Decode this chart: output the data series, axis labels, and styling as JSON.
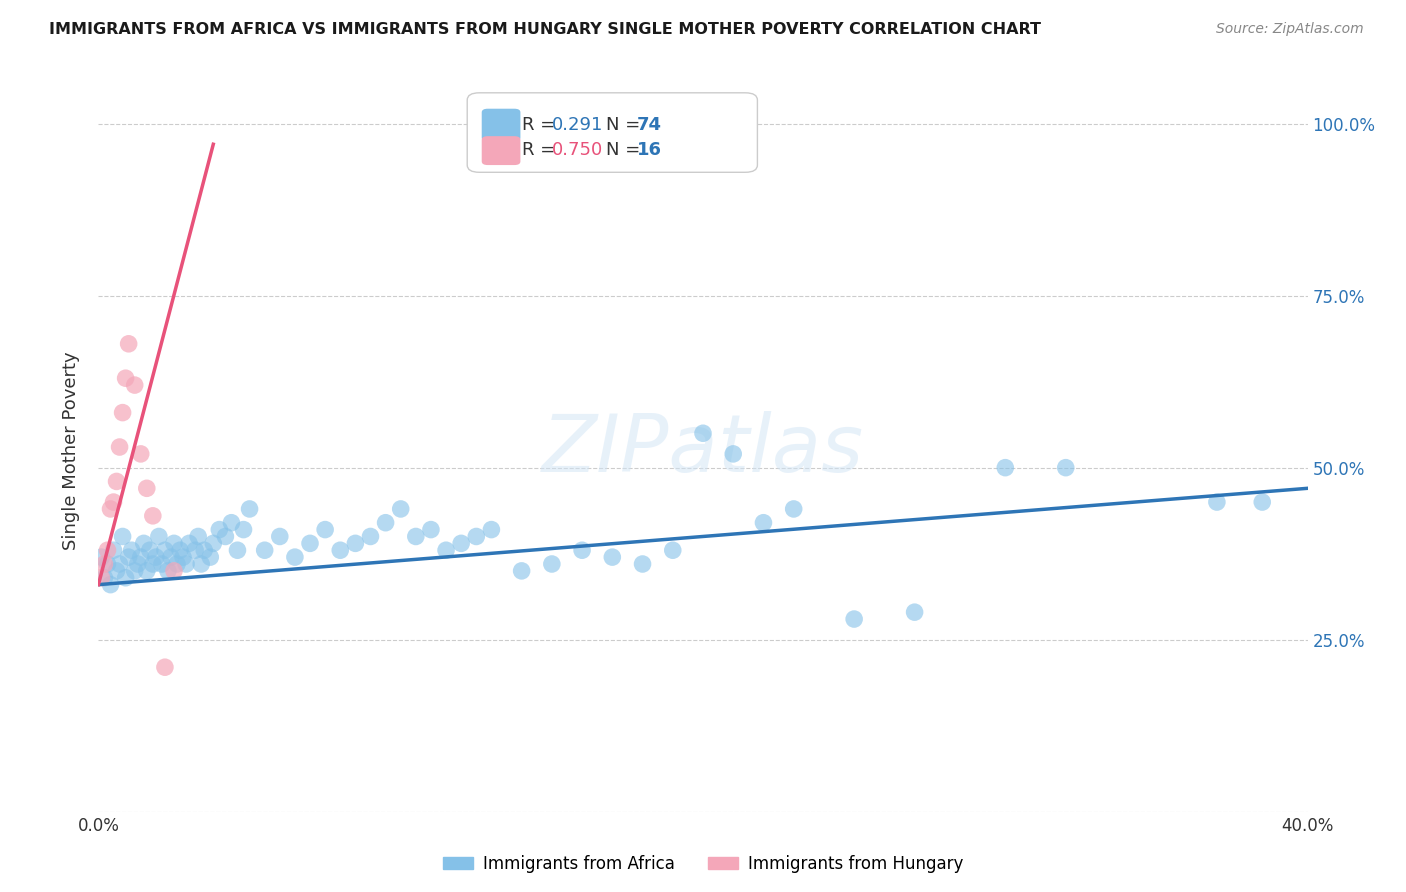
{
  "title": "IMMIGRANTS FROM AFRICA VS IMMIGRANTS FROM HUNGARY SINGLE MOTHER POVERTY CORRELATION CHART",
  "source": "Source: ZipAtlas.com",
  "ylabel": "Single Mother Poverty",
  "watermark": "ZIPatlas",
  "xlim": [
    0.0,
    0.4
  ],
  "ylim": [
    0.0,
    1.05
  ],
  "grid_color": "#cccccc",
  "background_color": "#ffffff",
  "africa_color": "#85C1E8",
  "africa_line_color": "#2E75B6",
  "hungary_color": "#F4A7B9",
  "hungary_line_color": "#E8527A",
  "africa_R": 0.291,
  "africa_N": 74,
  "hungary_R": 0.75,
  "hungary_N": 16,
  "africa_scatter_x": [
    0.001,
    0.002,
    0.003,
    0.004,
    0.005,
    0.006,
    0.007,
    0.008,
    0.009,
    0.01,
    0.011,
    0.012,
    0.013,
    0.014,
    0.015,
    0.016,
    0.017,
    0.018,
    0.019,
    0.02,
    0.021,
    0.022,
    0.023,
    0.024,
    0.025,
    0.026,
    0.027,
    0.028,
    0.029,
    0.03,
    0.032,
    0.033,
    0.034,
    0.035,
    0.037,
    0.038,
    0.04,
    0.042,
    0.044,
    0.046,
    0.048,
    0.05,
    0.055,
    0.06,
    0.065,
    0.07,
    0.075,
    0.08,
    0.085,
    0.09,
    0.095,
    0.1,
    0.105,
    0.11,
    0.115,
    0.12,
    0.125,
    0.13,
    0.14,
    0.15,
    0.16,
    0.17,
    0.18,
    0.19,
    0.2,
    0.21,
    0.22,
    0.23,
    0.25,
    0.27,
    0.3,
    0.32,
    0.37,
    0.385
  ],
  "africa_scatter_y": [
    0.37,
    0.34,
    0.36,
    0.33,
    0.38,
    0.35,
    0.36,
    0.4,
    0.34,
    0.37,
    0.38,
    0.35,
    0.36,
    0.37,
    0.39,
    0.35,
    0.38,
    0.36,
    0.37,
    0.4,
    0.36,
    0.38,
    0.35,
    0.37,
    0.39,
    0.36,
    0.38,
    0.37,
    0.36,
    0.39,
    0.38,
    0.4,
    0.36,
    0.38,
    0.37,
    0.39,
    0.41,
    0.4,
    0.42,
    0.38,
    0.41,
    0.44,
    0.38,
    0.4,
    0.37,
    0.39,
    0.41,
    0.38,
    0.39,
    0.4,
    0.42,
    0.44,
    0.4,
    0.41,
    0.38,
    0.39,
    0.4,
    0.41,
    0.35,
    0.36,
    0.38,
    0.37,
    0.36,
    0.38,
    0.55,
    0.52,
    0.42,
    0.44,
    0.28,
    0.29,
    0.5,
    0.5,
    0.45,
    0.45
  ],
  "hungary_scatter_x": [
    0.001,
    0.002,
    0.003,
    0.004,
    0.005,
    0.006,
    0.007,
    0.008,
    0.009,
    0.01,
    0.012,
    0.014,
    0.016,
    0.018,
    0.022,
    0.025
  ],
  "hungary_scatter_y": [
    0.34,
    0.36,
    0.38,
    0.44,
    0.45,
    0.48,
    0.53,
    0.58,
    0.63,
    0.68,
    0.62,
    0.52,
    0.47,
    0.43,
    0.21,
    0.35
  ],
  "africa_trend": [
    0.0,
    0.4,
    0.33,
    0.47
  ],
  "hungary_trend": [
    0.0,
    0.038,
    0.33,
    0.97
  ],
  "r_text_color": "#2E75B6",
  "n_text_color": "#2E75B6",
  "r2_text_color": "#E8527A",
  "n2_text_color": "#2E75B6"
}
